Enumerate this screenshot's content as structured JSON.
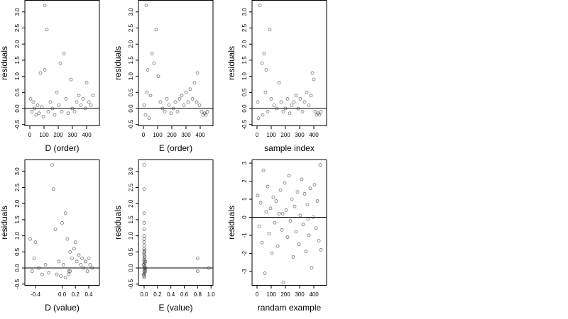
{
  "chart_data": [
    {
      "type": "scatter",
      "xlabel": "D (order)",
      "ylabel": "residuals",
      "color": "#000000",
      "hline": 0,
      "xlim": [
        -35,
        490
      ],
      "ylim": [
        -0.55,
        3.37
      ],
      "xticks": [
        0,
        100,
        200,
        300,
        400
      ],
      "yticks": [
        -0.5,
        {
          "value": 0,
          "label": "0.0"
        },
        0.5,
        {
          "value": 1,
          "label": "1.0"
        },
        1.5,
        {
          "value": 2,
          "label": "2.0"
        },
        2.5,
        {
          "value": 3,
          "label": "3.0"
        }
      ],
      "x": [
        5,
        15,
        25,
        35,
        45,
        55,
        65,
        75,
        85,
        95,
        105,
        105,
        120,
        130,
        145,
        160,
        175,
        190,
        205,
        215,
        225,
        240,
        255,
        270,
        290,
        300,
        315,
        330,
        345,
        360,
        375,
        390,
        400,
        415,
        430,
        445
      ],
      "values": [
        0.3,
        -0.1,
        0.2,
        0.0,
        -0.2,
        0.1,
        -0.15,
        1.1,
        0.05,
        -0.25,
        3.2,
        1.2,
        2.45,
        -0.1,
        0.2,
        0.0,
        -0.2,
        0.5,
        0.1,
        1.4,
        -0.1,
        1.7,
        0.3,
        -0.15,
        0.9,
        0.0,
        -0.1,
        0.2,
        0.4,
        0.1,
        0.3,
        0.0,
        0.8,
        0.2,
        0.1,
        0.4
      ]
    },
    {
      "type": "scatter",
      "xlabel": "E (order)",
      "ylabel": "residuals",
      "color": "#000000",
      "hline": 0,
      "xlim": [
        -35,
        490
      ],
      "ylim": [
        -0.55,
        3.37
      ],
      "xticks": [
        0,
        100,
        200,
        300,
        400
      ],
      "yticks": [
        -0.5,
        {
          "value": 0,
          "label": "0.0"
        },
        0.5,
        {
          "value": 1,
          "label": "1.0"
        },
        1.5,
        {
          "value": 2,
          "label": "2.0"
        },
        2.5,
        {
          "value": 3,
          "label": "3.0"
        }
      ],
      "x": [
        5,
        15,
        20,
        30,
        40,
        50,
        60,
        75,
        90,
        105,
        120,
        135,
        150,
        165,
        180,
        195,
        210,
        225,
        240,
        255,
        270,
        285,
        300,
        315,
        330,
        345,
        360,
        375,
        380,
        395,
        410,
        420,
        430,
        440,
        450,
        25
      ],
      "values": [
        0.1,
        -0.2,
        3.2,
        1.2,
        -0.3,
        0.4,
        1.7,
        1.4,
        2.45,
        1.0,
        0.2,
        0.0,
        -0.1,
        0.3,
        0.1,
        -0.15,
        0.0,
        0.2,
        -0.1,
        0.3,
        0.4,
        0.1,
        0.5,
        0.2,
        0.6,
        0.3,
        0.8,
        0.2,
        1.1,
        0.1,
        -0.1,
        -0.2,
        -0.15,
        -0.2,
        -0.1,
        0.5
      ]
    },
    {
      "type": "scatter",
      "xlabel": "sample index",
      "ylabel": "residuals",
      "color": "#000000",
      "hline": 0,
      "xlim": [
        -35,
        490
      ],
      "ylim": [
        -0.55,
        3.37
      ],
      "xticks": [
        0,
        100,
        200,
        300,
        400
      ],
      "yticks": [
        -0.5,
        {
          "value": 0,
          "label": "0.0"
        },
        0.5,
        {
          "value": 1,
          "label": "1.0"
        },
        1.5,
        {
          "value": 2,
          "label": "2.0"
        },
        2.5,
        {
          "value": 3,
          "label": "3.0"
        }
      ],
      "x": [
        5,
        10,
        20,
        35,
        40,
        50,
        65,
        75,
        90,
        100,
        120,
        140,
        155,
        170,
        185,
        200,
        215,
        230,
        245,
        260,
        275,
        290,
        305,
        320,
        335,
        350,
        365,
        380,
        390,
        400,
        410,
        420,
        430,
        440,
        450,
        60
      ],
      "values": [
        0.2,
        -0.3,
        3.2,
        1.4,
        -0.2,
        1.7,
        1.2,
        -0.1,
        2.45,
        0.3,
        0.1,
        0.0,
        0.8,
        0.2,
        -0.1,
        0.0,
        0.3,
        -0.15,
        0.1,
        0.2,
        0.4,
        0.0,
        0.3,
        -0.1,
        0.2,
        0.5,
        0.1,
        0.4,
        1.1,
        0.9,
        -0.1,
        -0.2,
        -0.15,
        -0.2,
        -0.1,
        0.5
      ]
    },
    {
      "type": "scatter",
      "xlabel": "D (value)",
      "ylabel": "residuals",
      "color": "#000000",
      "hline": 0,
      "xlim": [
        -0.56,
        0.56
      ],
      "ylim": [
        -0.55,
        3.37
      ],
      "xticks": [
        -0.4,
        {
          "value": 0,
          "label": "0.0"
        },
        0.2,
        0.4
      ],
      "yticks": [
        -0.5,
        {
          "value": 0,
          "label": "0.0"
        },
        0.5,
        {
          "value": 1,
          "label": "1.0"
        },
        1.5,
        {
          "value": 2,
          "label": "2.0"
        },
        2.5,
        {
          "value": 3,
          "label": "3.0"
        }
      ],
      "x": [
        -0.48,
        -0.45,
        -0.42,
        -0.35,
        -0.3,
        -0.25,
        -0.2,
        -0.15,
        -0.13,
        -0.1,
        -0.08,
        -0.05,
        -0.02,
        0.0,
        0.02,
        0.05,
        0.08,
        0.1,
        0.1,
        0.12,
        0.15,
        0.18,
        0.2,
        0.22,
        0.25,
        0.28,
        0.3,
        0.32,
        0.35,
        0.38,
        0.4,
        0.42,
        0.45,
        -0.4,
        0.05,
        0.12
      ],
      "values": [
        0.9,
        -0.1,
        0.3,
        0.0,
        -0.2,
        0.1,
        -0.15,
        3.2,
        2.45,
        1.2,
        -0.2,
        0.2,
        -0.25,
        1.4,
        0.1,
        1.7,
        0.9,
        -0.1,
        -0.2,
        0.5,
        0.3,
        0.6,
        0.8,
        0.2,
        0.4,
        0.1,
        0.3,
        0.0,
        0.2,
        -0.1,
        0.3,
        0.1,
        0.0,
        0.8,
        -0.3,
        -0.1
      ]
    },
    {
      "type": "scatter",
      "xlabel": "E (value)",
      "ylabel": "residuals",
      "color": "#000000",
      "hline": 0,
      "xlim": [
        -0.085,
        1.03
      ],
      "ylim": [
        -0.55,
        3.37
      ],
      "xticks": [
        {
          "value": 0,
          "label": "0.0"
        },
        0.2,
        0.4,
        0.6,
        0.8,
        {
          "value": 1,
          "label": "1.0"
        }
      ],
      "yticks": [
        -0.5,
        {
          "value": 0,
          "label": "0.0"
        },
        0.5,
        {
          "value": 1,
          "label": "1.0"
        },
        1.5,
        {
          "value": 2,
          "label": "2.0"
        },
        2.5,
        {
          "value": 3,
          "label": "3.0"
        }
      ],
      "x": [
        0,
        0,
        0,
        0,
        0,
        0,
        0,
        0,
        0,
        0,
        0,
        0,
        0,
        0,
        0,
        0,
        0,
        0,
        0,
        0,
        0.01,
        0.01,
        0.01,
        0.01,
        0.01,
        0.02,
        0.02,
        -0.01,
        -0.01,
        0.02,
        0.8,
        0.8,
        0.97,
        0,
        0.01,
        0
      ],
      "values": [
        3.2,
        2.45,
        1.7,
        1.4,
        1.2,
        1.0,
        0.9,
        0.8,
        0.6,
        0.5,
        0.4,
        0.3,
        0.2,
        0.1,
        0.0,
        -0.1,
        -0.2,
        -0.3,
        0.45,
        0.25,
        0.35,
        0.15,
        0.05,
        -0.05,
        -0.15,
        0.2,
        -0.1,
        0.1,
        -0.2,
        0.0,
        0.3,
        -0.1,
        0.0,
        0.7,
        0.55,
        -0.25
      ]
    },
    {
      "type": "scatter",
      "xlabel": "randam example",
      "ylabel": "residuals",
      "color": "#000000",
      "hline": 0,
      "xlim": [
        -35,
        490
      ],
      "ylim": [
        -3.79,
        3.2
      ],
      "xticks": [
        0,
        100,
        200,
        300,
        400
      ],
      "yticks": [
        -3,
        -2,
        -1,
        0,
        1,
        2,
        3
      ],
      "x": [
        5,
        15,
        25,
        35,
        45,
        55,
        65,
        75,
        85,
        95,
        105,
        115,
        125,
        135,
        145,
        155,
        165,
        175,
        185,
        195,
        205,
        215,
        225,
        235,
        245,
        255,
        265,
        275,
        285,
        295,
        305,
        315,
        325,
        335,
        345,
        355,
        365,
        375,
        385,
        395,
        405,
        415,
        425,
        435,
        445,
        450,
        180,
        360
      ],
      "values": [
        1.2,
        -0.5,
        0.8,
        -1.4,
        2.6,
        -3.1,
        0.3,
        1.7,
        -0.9,
        0.5,
        -2.0,
        1.1,
        -0.3,
        0.9,
        -1.6,
        0.2,
        1.5,
        -0.7,
        -3.6,
        1.9,
        0.4,
        -1.1,
        2.3,
        -0.2,
        1.0,
        -2.2,
        0.6,
        -0.8,
        1.4,
        -1.5,
        0.1,
        2.1,
        -0.4,
        1.3,
        -1.9,
        0.7,
        -1.0,
        1.6,
        -2.8,
        0.0,
        1.8,
        -0.6,
        0.9,
        -1.3,
        2.9,
        -1.8,
        0.2,
        -0.1
      ]
    }
  ]
}
